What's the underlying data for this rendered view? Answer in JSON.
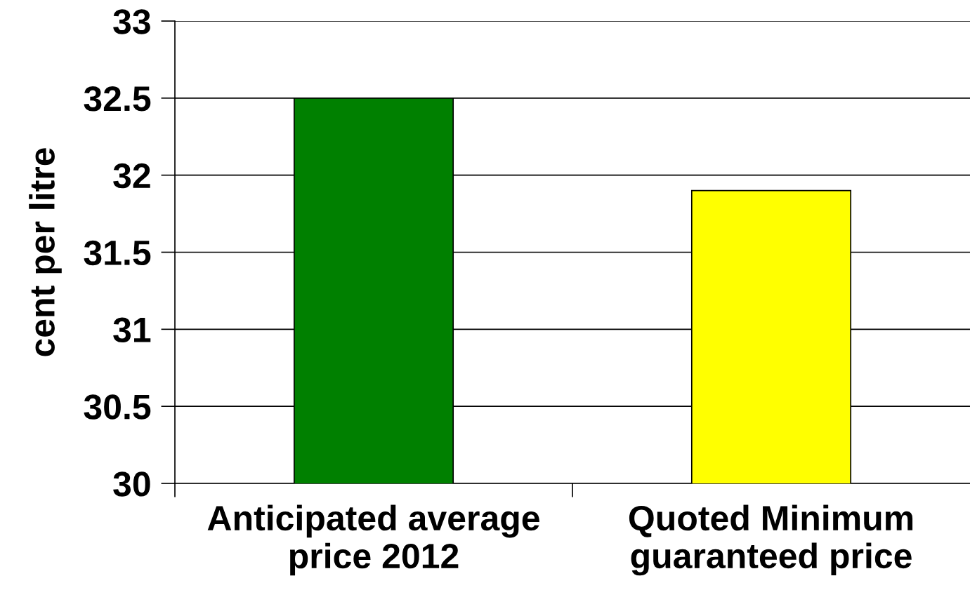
{
  "chart_data": {
    "type": "bar",
    "ylabel": "cent per litre",
    "categories": [
      "Anticipated average\nprice 2012",
      "Quoted Minimum\nguaranteed price"
    ],
    "values": [
      32.5,
      31.9
    ],
    "colors": [
      "#008000",
      "#ffff00"
    ],
    "ylim": [
      30,
      33
    ],
    "yticks": [
      30,
      30.5,
      31,
      31.5,
      32,
      32.5,
      33
    ],
    "grid": "y",
    "legend": false
  }
}
